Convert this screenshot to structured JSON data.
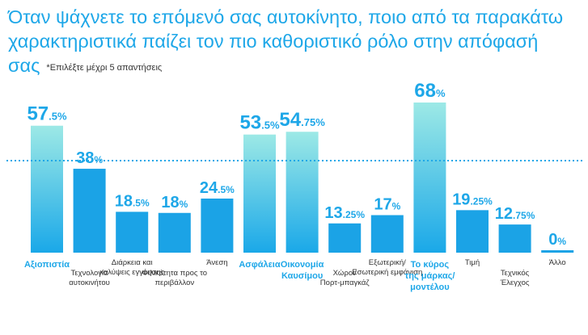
{
  "title": "Όταν ψάχνετε το επόμενό σας αυτοκίνητο, ποιο από τα παρακάτω χαρακτηριστικά παίζει τον πιο καθοριστικό ρόλο στην απόφασή σας",
  "note": "*Επιλέξτε μέχρι 5 απαντήσεις",
  "colors": {
    "accent": "#1ea7e8",
    "bar_normal": "#1ba3e6",
    "bar_highlight_top": "#9de9e6",
    "bar_highlight_bottom": "#1aa8e8",
    "text_dark": "#333333",
    "reference_line": "#1ea7e8"
  },
  "chart_data": {
    "type": "bar",
    "reference_line": "dotted horizontal line across the chart",
    "categories": [
      [
        "Αξιοπιστία"
      ],
      [
        "Τεχνολογία",
        "αυτοκινήτου"
      ],
      [
        "Διάρκεια και",
        "καλύψεις εγγύησης"
      ],
      [
        "Φιλικότητα προς το",
        "περιβάλλον"
      ],
      [
        "Άνεση"
      ],
      [
        "Ασφάλεια"
      ],
      [
        "Οικονομία",
        "Καυσίμου"
      ],
      [
        "Χώροι/",
        "Πορτ-μπαγκάζ"
      ],
      [
        "Εξωτερική/",
        "Εσωτερική εμφάνιση"
      ],
      [
        "Το κύρος",
        "της μάρκας/",
        "μοντέλου"
      ],
      [
        "Τιμή"
      ],
      [
        "Τεχνικός",
        "Έλεγχος"
      ],
      [
        "Άλλο"
      ]
    ],
    "values": [
      57.5,
      38,
      18.5,
      18,
      24.5,
      53.5,
      54.75,
      13.25,
      17,
      68,
      19.25,
      12.75,
      0
    ],
    "value_labels": [
      [
        "57",
        ".5%"
      ],
      [
        "38",
        "%"
      ],
      [
        "18",
        ".5%"
      ],
      [
        "18",
        "%"
      ],
      [
        "24",
        ".5%"
      ],
      [
        "53",
        ".5%"
      ],
      [
        "54",
        ".75%"
      ],
      [
        "13",
        ".25%"
      ],
      [
        "17",
        "%"
      ],
      [
        "68",
        "%"
      ],
      [
        "19",
        ".25%"
      ],
      [
        "12",
        ".75%"
      ],
      [
        "0",
        "%"
      ]
    ],
    "highlighted": [
      true,
      false,
      false,
      false,
      false,
      true,
      true,
      false,
      false,
      true,
      false,
      false,
      false
    ],
    "ylim": [
      0,
      68
    ]
  }
}
